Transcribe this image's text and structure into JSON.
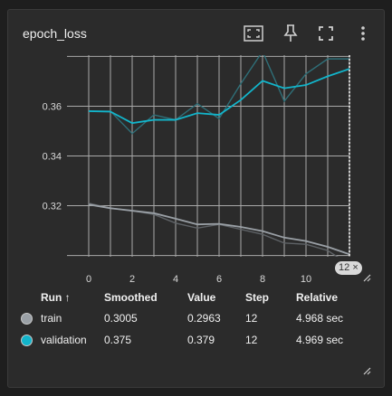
{
  "card": {
    "title": "epoch_loss",
    "step_chip": "12",
    "step_chip_close": "×"
  },
  "toolbar": {
    "icons": [
      "fit-domain-icon",
      "pin-icon",
      "fullscreen-icon",
      "more-vert-icon"
    ]
  },
  "colors": {
    "train": "#9aa0a6",
    "validation": "#12b5cb",
    "grid": "#bdbdbd"
  },
  "chart_data": {
    "type": "line",
    "title": "",
    "xlabel": "",
    "ylabel": "",
    "x_ticks": [
      "0",
      "2",
      "4",
      "6",
      "8",
      "10"
    ],
    "y_ticks": [
      "0.32",
      "0.34",
      "0.36"
    ],
    "ylim": [
      0.2995,
      0.3805
    ],
    "xlim": [
      -1.0,
      12.0
    ],
    "grid": true,
    "series": [
      {
        "name": "train",
        "raw": [
          0.321,
          0.319,
          0.318,
          0.3165,
          0.313,
          0.311,
          0.3125,
          0.3105,
          0.3085,
          0.305,
          0.3045,
          0.302,
          0.2963
        ],
        "smoothed": [
          0.3205,
          0.319,
          0.318,
          0.317,
          0.3148,
          0.3125,
          0.3127,
          0.3115,
          0.3098,
          0.3072,
          0.3058,
          0.3035,
          0.3005
        ]
      },
      {
        "name": "validation",
        "raw": [
          0.358,
          0.358,
          0.349,
          0.3565,
          0.3545,
          0.361,
          0.355,
          0.369,
          0.382,
          0.362,
          0.373,
          0.379,
          0.379
        ],
        "smoothed": [
          0.358,
          0.3578,
          0.3532,
          0.3545,
          0.3545,
          0.3572,
          0.3565,
          0.3625,
          0.3702,
          0.3672,
          0.3685,
          0.372,
          0.375
        ]
      }
    ]
  },
  "table": {
    "headers": {
      "run": "Run ↑",
      "smoothed": "Smoothed",
      "value": "Value",
      "step": "Step",
      "relative": "Relative"
    },
    "rows": [
      {
        "run": "train",
        "smoothed": "0.3005",
        "value": "0.2963",
        "step": "12",
        "relative": "4.968 sec"
      },
      {
        "run": "validation",
        "smoothed": "0.375",
        "value": "0.379",
        "step": "12",
        "relative": "4.969 sec"
      }
    ]
  }
}
